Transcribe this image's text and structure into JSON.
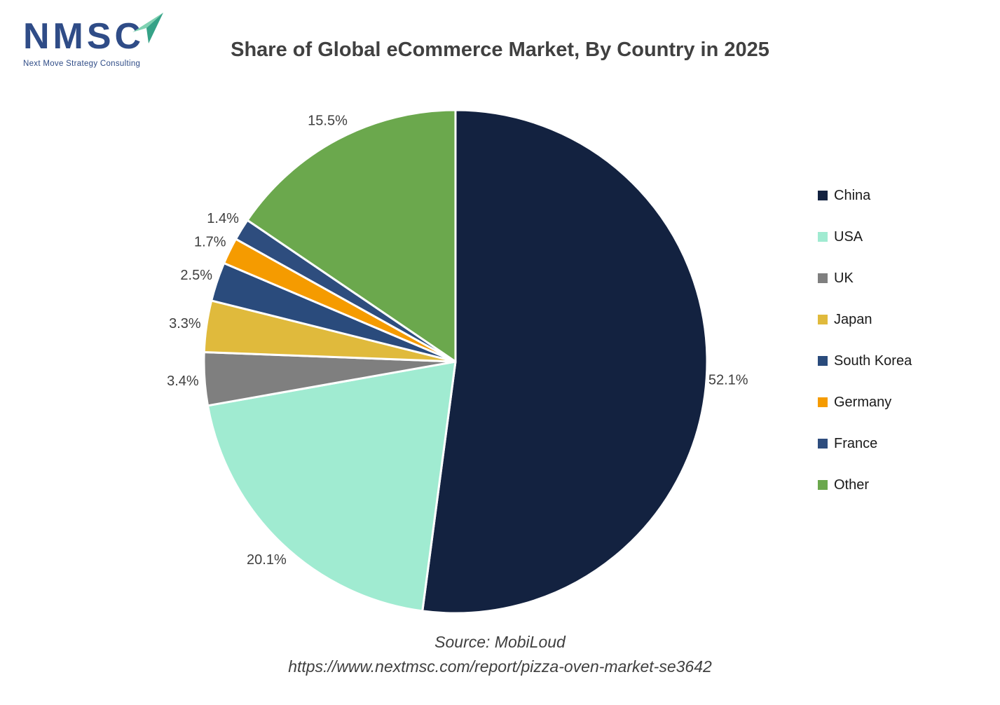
{
  "logo": {
    "text": "NMSC",
    "subtext": "Next Move Strategy Consulting",
    "brand_color": "#2F4C87",
    "arrow_light": "#7FD2B2",
    "arrow_dark": "#35A287"
  },
  "title": "Share of Global eCommerce Market, By Country in 2025",
  "chart_data": {
    "type": "pie",
    "title": "Share of Global eCommerce Market, By Country in 2025",
    "categories": [
      "China",
      "USA",
      "UK",
      "Japan",
      "South Korea",
      "Germany",
      "France",
      "Other"
    ],
    "values": [
      52.1,
      20.1,
      3.4,
      3.3,
      2.5,
      1.7,
      1.4,
      15.5
    ],
    "labels": [
      "52.1%",
      "20.1%",
      "3.4%",
      "3.3%",
      "2.5%",
      "1.7%",
      "1.4%",
      "15.5%"
    ],
    "colors": [
      "#132240",
      "#A0EBD1",
      "#7F7F7F",
      "#E0BA3C",
      "#2A4B7C",
      "#F59B00",
      "#2E4D7E",
      "#6BA84D"
    ],
    "start_angle_deg": 0,
    "direction": "clockwise",
    "legend_position": "right",
    "label_color": "#3F3F3F",
    "slice_gap_color": "#FFFFFF"
  },
  "source": {
    "line1": "Source: MobiLoud",
    "line2": "https://www.nextmsc.com/report/pizza-oven-market-se3642"
  }
}
